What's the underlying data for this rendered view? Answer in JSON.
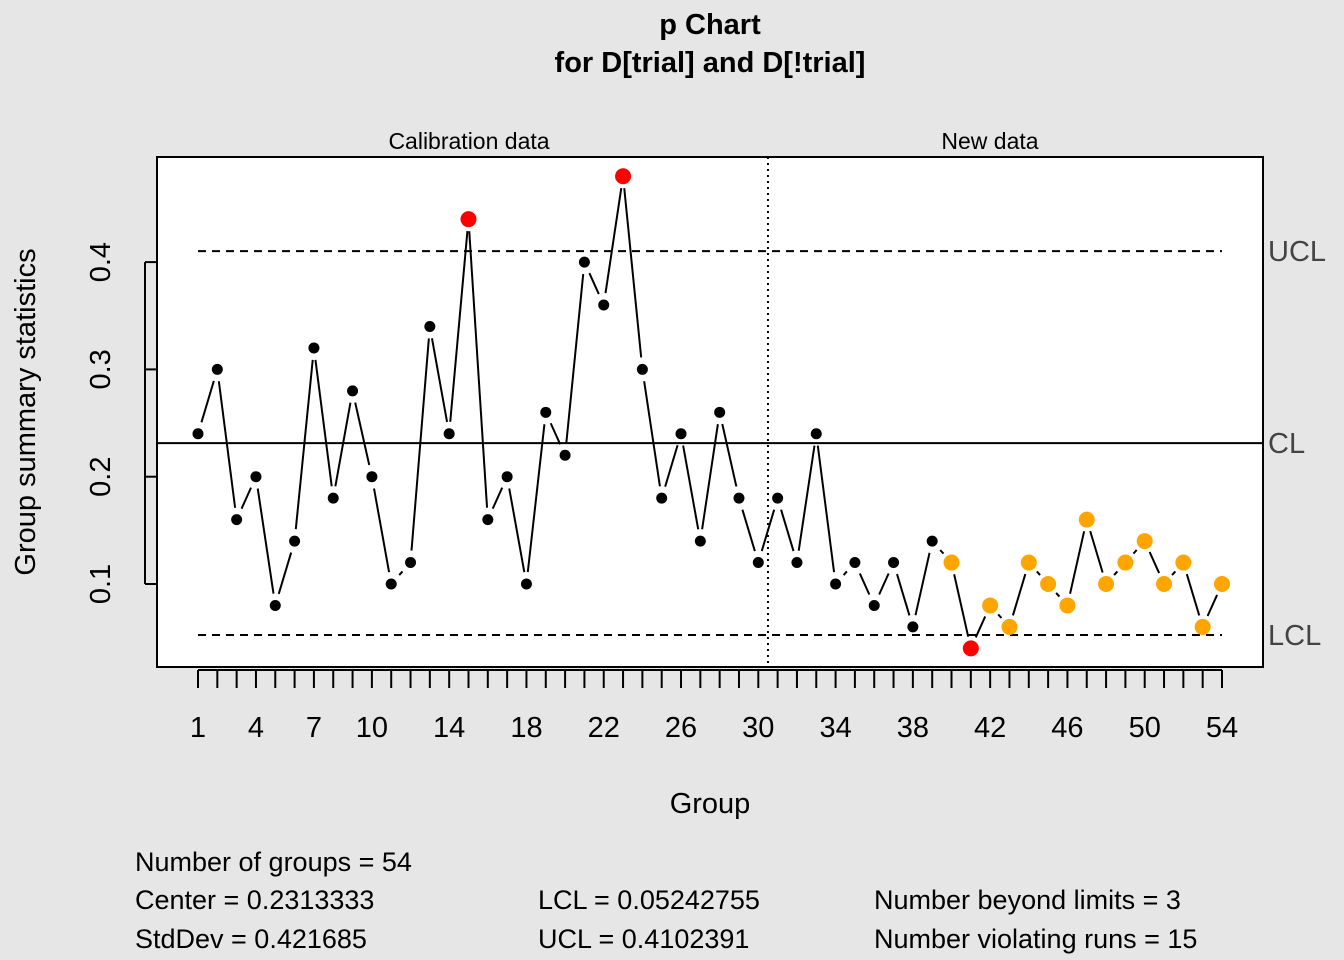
{
  "chart_data": {
    "type": "line",
    "title": "p Chart",
    "subtitle": "for D[trial] and D[!trial]",
    "xlabel": "Group",
    "ylabel": "Group summary statistics",
    "section_labels": [
      "Calibration data",
      "New data"
    ],
    "calibration_groups": 30,
    "x_tick_labels": [
      1,
      4,
      7,
      10,
      14,
      18,
      22,
      26,
      30,
      34,
      38,
      42,
      46,
      50,
      54
    ],
    "y_ticks": [
      0.1,
      0.2,
      0.3,
      0.4
    ],
    "y_tick_labels": [
      "0.1",
      "0.2",
      "0.3",
      "0.4"
    ],
    "ylim": [
      0.02,
      0.49
    ],
    "xlim": [
      1,
      54
    ],
    "x": [
      1,
      2,
      3,
      4,
      5,
      6,
      7,
      8,
      9,
      10,
      11,
      12,
      13,
      14,
      15,
      16,
      17,
      18,
      19,
      20,
      21,
      22,
      23,
      24,
      25,
      26,
      27,
      28,
      29,
      30,
      31,
      32,
      33,
      34,
      35,
      36,
      37,
      38,
      39,
      40,
      41,
      42,
      43,
      44,
      45,
      46,
      47,
      48,
      49,
      50,
      51,
      52,
      53,
      54
    ],
    "values": [
      0.24,
      0.3,
      0.16,
      0.2,
      0.08,
      0.14,
      0.32,
      0.18,
      0.28,
      0.2,
      0.1,
      0.12,
      0.34,
      0.24,
      0.44,
      0.16,
      0.2,
      0.1,
      0.26,
      0.22,
      0.4,
      0.36,
      0.48,
      0.3,
      0.18,
      0.24,
      0.14,
      0.26,
      0.18,
      0.12,
      0.18,
      0.12,
      0.24,
      0.1,
      0.12,
      0.08,
      0.12,
      0.06,
      0.14,
      0.12,
      0.04,
      0.08,
      0.06,
      0.12,
      0.1,
      0.08,
      0.16,
      0.1,
      0.12,
      0.14,
      0.1,
      0.12,
      0.06,
      0.1
    ],
    "beyond_limits": [
      15,
      23,
      41
    ],
    "violating_runs": [
      40,
      42,
      43,
      44,
      45,
      46,
      47,
      48,
      49,
      50,
      51,
      52,
      53,
      54
    ],
    "limits": {
      "CL": 0.2313333,
      "UCL": 0.4102391,
      "LCL": 0.05242755
    },
    "limit_labels": {
      "UCL": "UCL",
      "CL": "CL",
      "LCL": "LCL"
    },
    "colors": {
      "point": "#000000",
      "beyond": "#ff0000",
      "runs": "#ffa500",
      "limit_label": "#444444"
    }
  },
  "stats": {
    "groups": "Number of groups = 54",
    "center": "Center = 0.2313333",
    "stddev": "StdDev = 0.421685",
    "lcl": "LCL = 0.05242755",
    "ucl": "UCL = 0.4102391",
    "beyond": "Number beyond limits = 3",
    "runs": "Number violating runs = 15"
  }
}
